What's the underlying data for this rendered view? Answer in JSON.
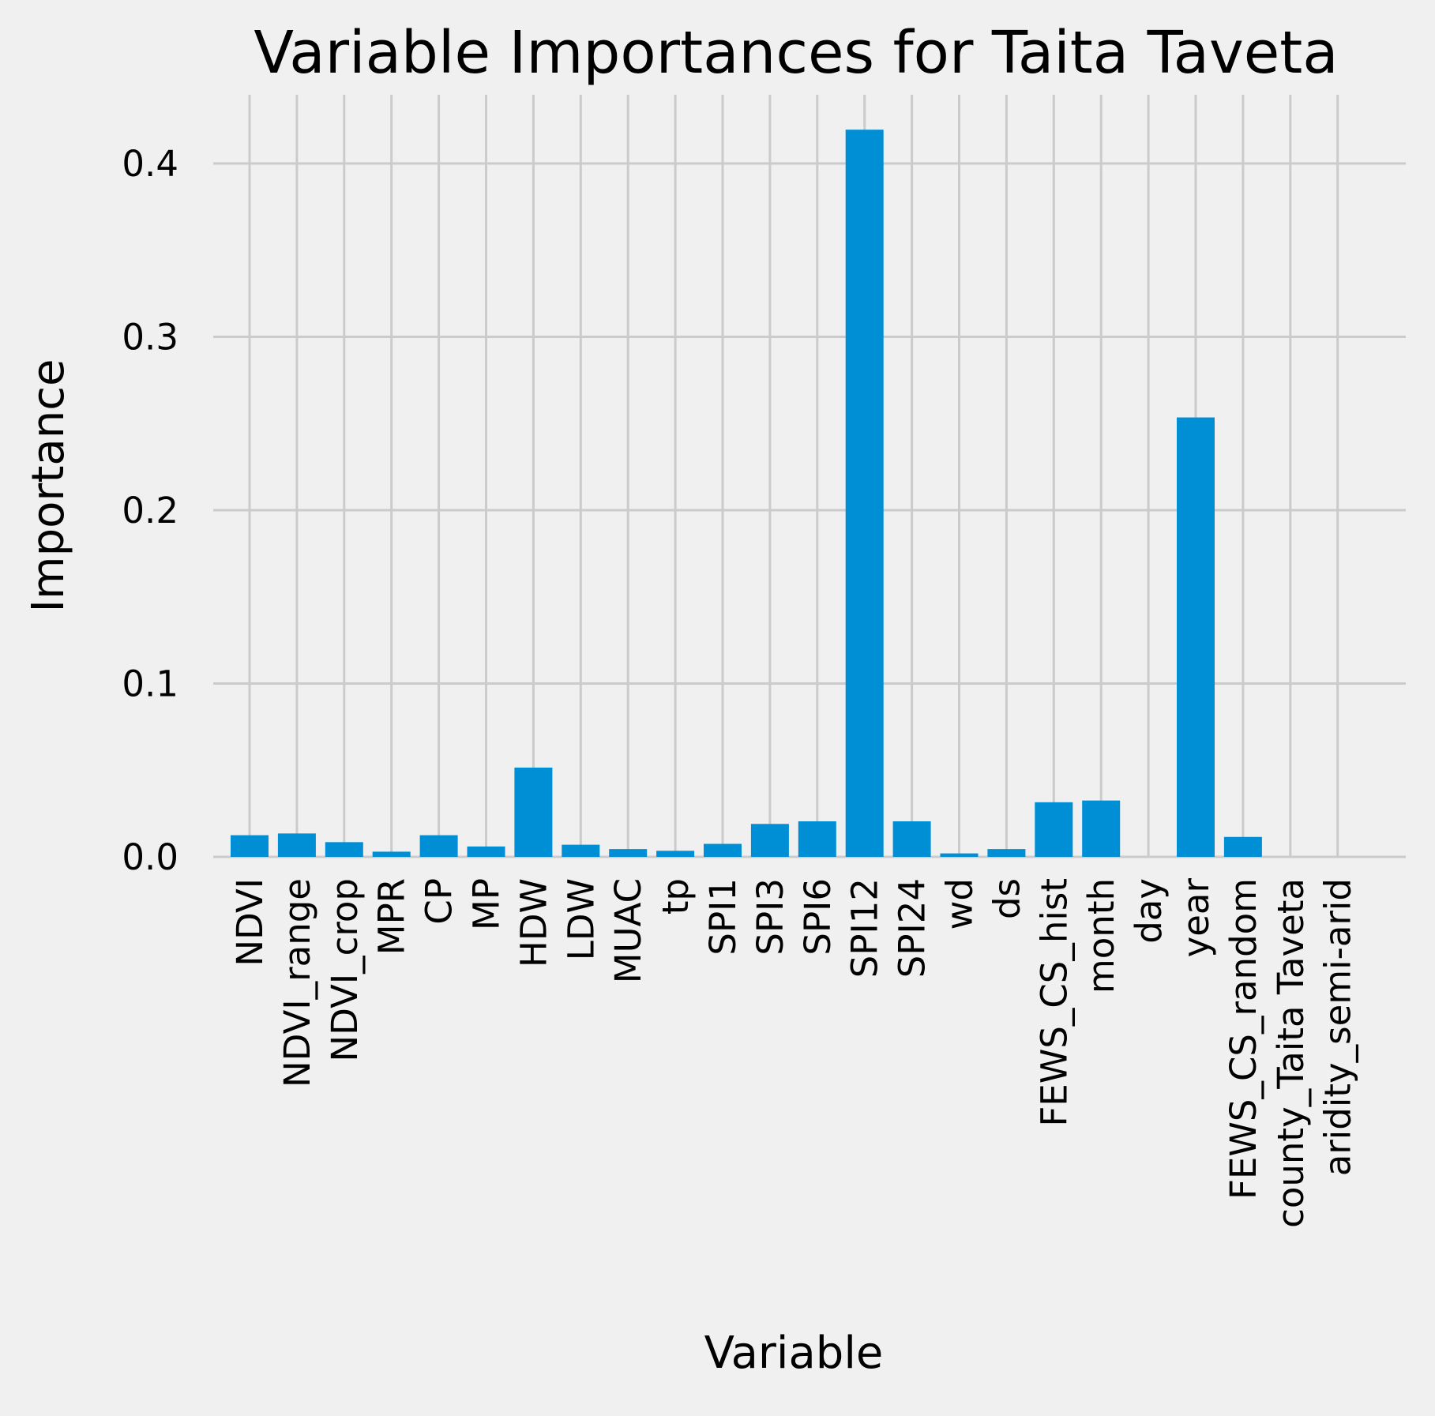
{
  "chart_data": {
    "type": "bar",
    "title": "Variable Importances for Taita Taveta",
    "xlabel": "Variable",
    "ylabel": "Importance",
    "categories": [
      "NDVI",
      "NDVI_range",
      "NDVI_crop",
      "MPR",
      "CP",
      "MP",
      "HDW",
      "LDW",
      "MUAC",
      "tp",
      "SPI1",
      "SPI3",
      "SPI6",
      "SPI12",
      "SPI24",
      "wd",
      "ds",
      "FEWS_CS_hist",
      "month",
      "day",
      "year",
      "FEWS_CS_random",
      "county_Taita Taveta",
      "aridity_semi-arid"
    ],
    "values": [
      0.0125,
      0.0135,
      0.0085,
      0.003,
      0.0125,
      0.006,
      0.0515,
      0.007,
      0.0045,
      0.0035,
      0.0075,
      0.019,
      0.0205,
      0.4195,
      0.0205,
      0.002,
      0.0045,
      0.0315,
      0.0325,
      0.0,
      0.2535,
      0.0115,
      0.0,
      0.0
    ],
    "yticks": [
      "0.0",
      "0.1",
      "0.2",
      "0.3",
      "0.4"
    ],
    "ylim": [
      0,
      0.44
    ],
    "grid": true,
    "color": "#008fd5",
    "background": "#f0f0f0",
    "grid_color": "#cbcbcb"
  }
}
